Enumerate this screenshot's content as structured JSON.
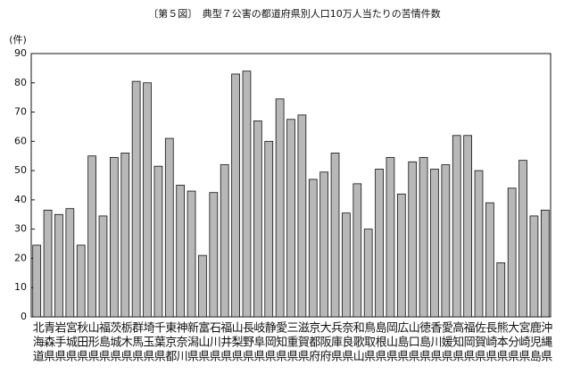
{
  "chart_data": {
    "type": "bar",
    "title": "〔第５図〕　典型７公害の都道府県別人口10万人当たりの苦情件数",
    "y_label": "(件)",
    "categories": [
      "北海道",
      "青森県",
      "岩手県",
      "宮城県",
      "秋田県",
      "山形県",
      "福島県",
      "茨城県",
      "栃木県",
      "群馬県",
      "埼玉県",
      "千葉県",
      "東京都",
      "神奈川",
      "新潟県",
      "富山県",
      "石川県",
      "福井県",
      "山梨県",
      "長野県",
      "岐阜県",
      "静岡県",
      "愛知県",
      "三重県",
      "滋賀県",
      "京都府",
      "大阪府",
      "兵庫県",
      "奈良県",
      "和歌山",
      "鳥取県",
      "島根県",
      "岡山県",
      "広島県",
      "山口県",
      "徳島県",
      "香川県",
      "愛媛県",
      "高知県",
      "福岡県",
      "佐賀県",
      "長崎県",
      "熊本県",
      "大分県",
      "宮崎県",
      "鹿児島",
      "沖縄県"
    ],
    "values": [
      24.5,
      36.5,
      35,
      37,
      24.5,
      55,
      34.5,
      54.5,
      56,
      80.5,
      80,
      51.5,
      61,
      45,
      43,
      21,
      42.5,
      52,
      83,
      84,
      67,
      60,
      74.5,
      67.5,
      69,
      47,
      49.5,
      56,
      35.5,
      45.5,
      30,
      50.5,
      54.5,
      42,
      53,
      54.5,
      50.5,
      52,
      62,
      62,
      50,
      39,
      18.5,
      44,
      53.5,
      34.5,
      36.5
    ],
    "color": "#b8b8b8",
    "ylim": [
      0,
      90
    ],
    "yticks": [
      0,
      10,
      20,
      30,
      40,
      50,
      60,
      70,
      80,
      90
    ],
    "grid": false
  }
}
